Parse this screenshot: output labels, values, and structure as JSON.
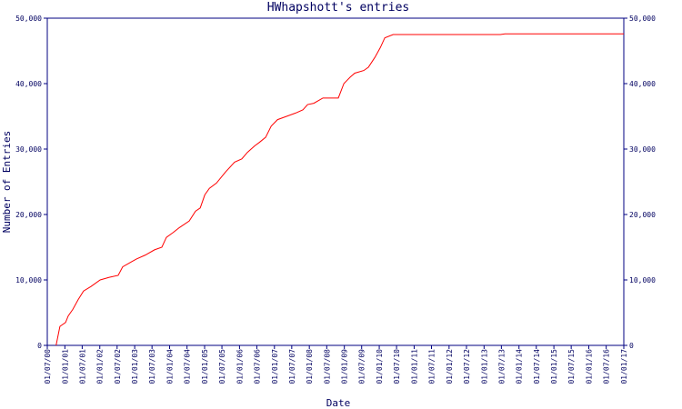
{
  "chart_data": {
    "type": "line",
    "title": "HWhapshott's entries",
    "y_label": "Number of Entries",
    "x_label": "Date",
    "color": "#ff0000",
    "x": [
      "2000-10-01",
      "2000-11-10",
      "2001-01-08",
      "2001-02-05",
      "2001-03-25",
      "2001-05-20",
      "2001-07-15",
      "2001-10-01",
      "2002-01-05",
      "2002-04-10",
      "2002-07-12",
      "2002-08-28",
      "2002-12-02",
      "2003-01-20",
      "2003-04-22",
      "2003-07-27",
      "2003-10-12",
      "2003-11-28",
      "2004-02-03",
      "2004-04-12",
      "2004-07-24",
      "2004-09-28",
      "2004-11-16",
      "2005-01-03",
      "2005-02-20",
      "2005-05-05",
      "2005-08-08",
      "2005-11-10",
      "2006-01-25",
      "2006-03-25",
      "2006-06-10",
      "2006-07-26",
      "2006-10-01",
      "2006-11-28",
      "2007-02-03",
      "2007-05-08",
      "2007-08-10",
      "2007-10-26",
      "2007-12-14",
      "2008-02-17",
      "2008-05-22",
      "2008-10-30",
      "2008-12-27",
      "2009-03-04",
      "2009-04-20",
      "2009-07-23",
      "2009-09-09",
      "2009-11-16",
      "2010-01-12",
      "2010-02-28",
      "2010-05-26",
      "2013-06-21",
      "2013-08-08",
      "2017-01-01"
    ],
    "values": [
      0,
      2900,
      3500,
      4500,
      5500,
      7000,
      8300,
      9000,
      10000,
      10400,
      10700,
      12000,
      12800,
      13200,
      13800,
      14600,
      15000,
      16500,
      17200,
      18000,
      19000,
      20500,
      21000,
      23000,
      24000,
      24800,
      26500,
      28000,
      28500,
      29500,
      30500,
      31000,
      31800,
      33500,
      34500,
      35000,
      35500,
      36000,
      36800,
      37000,
      37800,
      37800,
      40000,
      41000,
      41600,
      42000,
      42500,
      44000,
      45500,
      47000,
      47500,
      47500,
      47600,
      47600
    ],
    "xlim": [
      "2000-07-01",
      "2017-01-01"
    ],
    "xticks": [
      {
        "value": "2000-07-01",
        "label": "01/07/00"
      },
      {
        "value": "2001-01-01",
        "label": "01/01/01"
      },
      {
        "value": "2001-07-01",
        "label": "01/07/01"
      },
      {
        "value": "2002-01-01",
        "label": "01/01/02"
      },
      {
        "value": "2002-07-01",
        "label": "01/07/02"
      },
      {
        "value": "2003-01-01",
        "label": "01/01/03"
      },
      {
        "value": "2003-07-01",
        "label": "01/07/03"
      },
      {
        "value": "2004-01-01",
        "label": "01/01/04"
      },
      {
        "value": "2004-07-01",
        "label": "01/07/04"
      },
      {
        "value": "2005-01-01",
        "label": "01/01/05"
      },
      {
        "value": "2005-07-01",
        "label": "01/07/05"
      },
      {
        "value": "2006-01-01",
        "label": "01/01/06"
      },
      {
        "value": "2006-07-01",
        "label": "01/07/06"
      },
      {
        "value": "2007-01-01",
        "label": "01/01/07"
      },
      {
        "value": "2007-07-01",
        "label": "01/07/07"
      },
      {
        "value": "2008-01-01",
        "label": "01/01/08"
      },
      {
        "value": "2008-07-01",
        "label": "01/07/08"
      },
      {
        "value": "2009-01-01",
        "label": "01/01/09"
      },
      {
        "value": "2009-07-01",
        "label": "01/07/09"
      },
      {
        "value": "2010-01-01",
        "label": "01/01/10"
      },
      {
        "value": "2010-07-01",
        "label": "01/07/10"
      },
      {
        "value": "2011-01-01",
        "label": "01/01/11"
      },
      {
        "value": "2011-07-01",
        "label": "01/07/11"
      },
      {
        "value": "2012-01-01",
        "label": "01/01/12"
      },
      {
        "value": "2012-07-01",
        "label": "01/07/12"
      },
      {
        "value": "2013-01-01",
        "label": "01/01/13"
      },
      {
        "value": "2013-07-01",
        "label": "01/07/13"
      },
      {
        "value": "2014-01-01",
        "label": "01/01/14"
      },
      {
        "value": "2014-07-01",
        "label": "01/07/14"
      },
      {
        "value": "2015-01-01",
        "label": "01/01/15"
      },
      {
        "value": "2015-07-01",
        "label": "01/07/15"
      },
      {
        "value": "2016-01-01",
        "label": "01/01/16"
      },
      {
        "value": "2016-07-01",
        "label": "01/07/16"
      },
      {
        "value": "2017-01-01",
        "label": "01/01/17"
      }
    ],
    "ylim": [
      0,
      50000
    ],
    "yticks": [
      0,
      {
        "value": 10000,
        "label": "10,000"
      },
      {
        "value": 20000,
        "label": "20,000"
      },
      {
        "value": 30000,
        "label": "30,000"
      },
      {
        "value": 40000,
        "label": "40,000"
      },
      {
        "value": 50000,
        "label": "50,000"
      }
    ],
    "y2lim": [
      0,
      50000
    ],
    "y2ticks": [
      0,
      {
        "value": 10000,
        "label": "10,000"
      },
      {
        "value": 20000,
        "label": "20,000"
      },
      {
        "value": 30000,
        "label": "30,000"
      },
      {
        "value": 40000,
        "label": "40,000"
      },
      {
        "value": 50000,
        "label": "50,000"
      }
    ]
  }
}
